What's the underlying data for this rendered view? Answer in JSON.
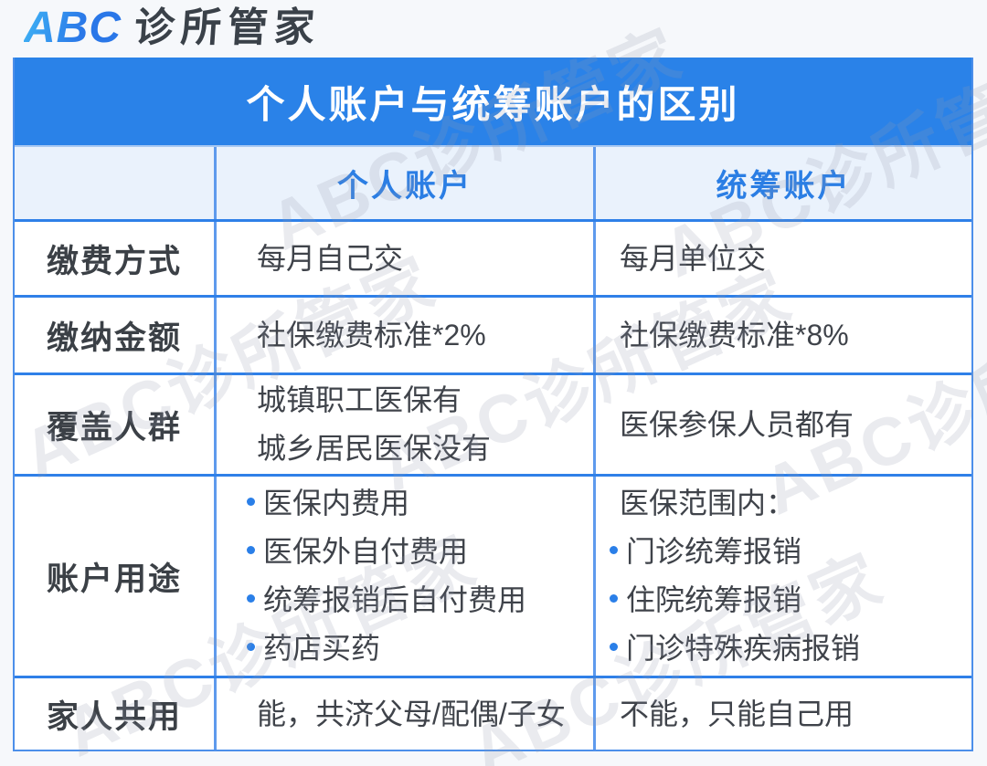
{
  "logo": {
    "abc": "ABC",
    "name": "诊所管家"
  },
  "watermark_text": "ABC诊所管家",
  "colors": {
    "accent_blue": "#2A82E8",
    "header_row_bg": "#EAF2FC",
    "row_border": "#2F80E8",
    "column_border": "#5E9AED",
    "header_label_blue": "#2B7EE4",
    "bullet_blue": "#2A7FE8",
    "text_dark": "#3F434A",
    "page_bg": "#F6F8FB"
  },
  "table": {
    "title": "个人账户与统筹账户的区别",
    "columns": [
      "个人账户",
      "统筹账户"
    ],
    "rows": [
      {
        "label": "缴费方式",
        "personal": [
          {
            "text": "每月自己交"
          }
        ],
        "pooled": [
          {
            "text": "每月单位交"
          }
        ]
      },
      {
        "label": "缴纳金额",
        "personal": [
          {
            "text": "社保缴费标准*2%"
          }
        ],
        "pooled": [
          {
            "text": "社保缴费标准*8%"
          }
        ]
      },
      {
        "label": "覆盖人群",
        "personal": [
          {
            "text": "城镇职工医保有"
          },
          {
            "text": "城乡居民医保没有"
          }
        ],
        "pooled": [
          {
            "text": "医保参保人员都有"
          }
        ]
      },
      {
        "label": "账户用途",
        "personal": [
          {
            "text": "医保内费用",
            "bullet": true
          },
          {
            "text": "医保外自付费用",
            "bullet": true
          },
          {
            "text": "统筹报销后自付费用",
            "bullet": true
          },
          {
            "text": "药店买药",
            "bullet": true
          }
        ],
        "pooled": [
          {
            "text": "医保范围内："
          },
          {
            "text": "门诊统筹报销",
            "bullet": true
          },
          {
            "text": "住院统筹报销",
            "bullet": true
          },
          {
            "text": "门诊特殊疾病报销",
            "bullet": true
          }
        ]
      },
      {
        "label": "家人共用",
        "personal": [
          {
            "text": "能，共济父母/配偶/子女"
          }
        ],
        "pooled": [
          {
            "text": "不能，只能自己用"
          }
        ]
      }
    ]
  }
}
